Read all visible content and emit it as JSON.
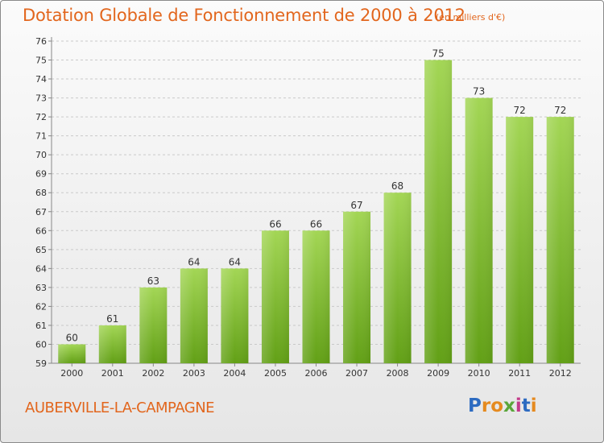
{
  "title": "Dotation Globale de Fonctionnement de 2000 à 2012",
  "unit": "(en milliers d'€)",
  "location": "AUBERVILLE-LA-CAMPAGNE",
  "logo": {
    "letters": [
      "P",
      "r",
      "o",
      "x",
      "i",
      "t",
      "i"
    ],
    "colors": [
      "#2d6bc1",
      "#e58a1f",
      "#e58a1f",
      "#5aa63a",
      "#c33b8a",
      "#2d6bc1",
      "#e58a1f"
    ]
  },
  "colors": {
    "accent": "#e2661d",
    "bar_light": "#9fd14f",
    "bar_dark": "#64a117",
    "grid": "#c9c9c9",
    "axis_text": "#333333"
  },
  "chart_data": {
    "type": "bar",
    "categories": [
      "2000",
      "2001",
      "2002",
      "2003",
      "2004",
      "2005",
      "2006",
      "2007",
      "2008",
      "2009",
      "2010",
      "2011",
      "2012"
    ],
    "values": [
      60,
      61,
      63,
      64,
      64,
      66,
      66,
      67,
      68,
      75,
      73,
      72,
      72
    ],
    "data_labels": [
      "60",
      "61",
      "63",
      "64",
      "64",
      "66",
      "66",
      "67",
      "68",
      "75",
      "73",
      "72",
      "72"
    ],
    "ylim": [
      59,
      76
    ],
    "yticks": [
      "59",
      "60",
      "61",
      "62",
      "63",
      "64",
      "65",
      "66",
      "67",
      "68",
      "69",
      "70",
      "71",
      "72",
      "73",
      "74",
      "75",
      "76"
    ],
    "grid": true,
    "xlabel": "",
    "ylabel": ""
  }
}
